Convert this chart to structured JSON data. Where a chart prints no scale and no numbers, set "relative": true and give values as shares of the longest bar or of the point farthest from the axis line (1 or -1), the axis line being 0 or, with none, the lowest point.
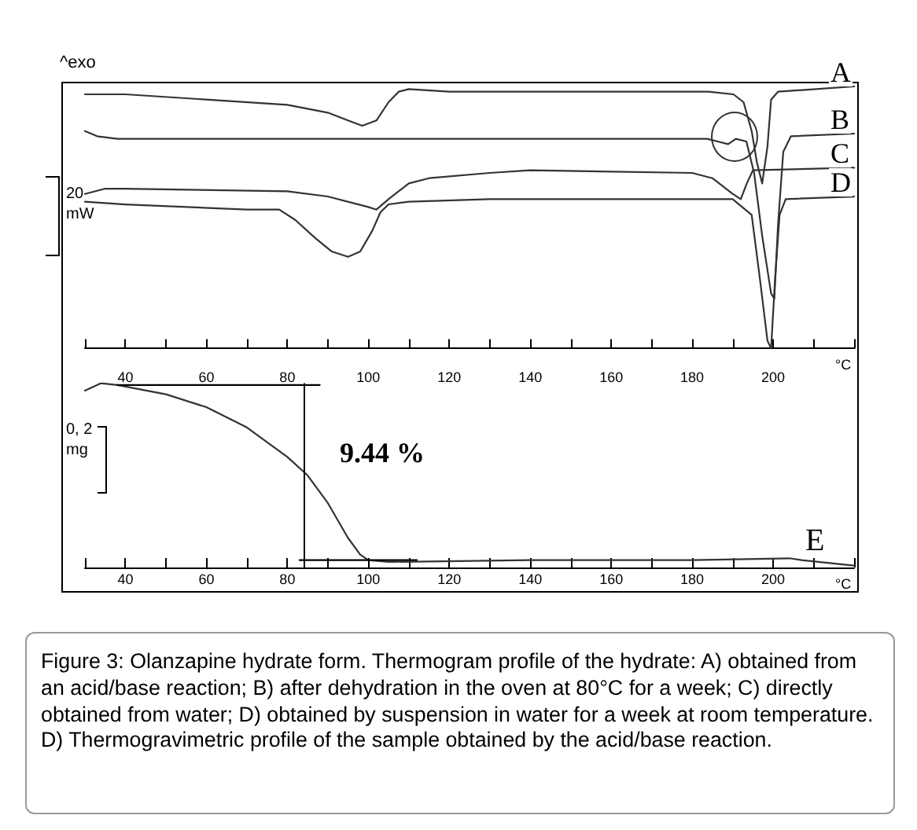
{
  "chart_data": [
    {
      "type": "line",
      "relative": true,
      "xlabel": "°C",
      "xlim": [
        30,
        220
      ],
      "xticks": [
        {
          "value": 30,
          "label": null
        },
        40,
        {
          "value": 50,
          "label": null
        },
        60,
        {
          "value": 70,
          "label": null
        },
        80,
        {
          "value": 90,
          "label": null
        },
        100,
        {
          "value": 110,
          "label": null
        },
        120,
        {
          "value": 130,
          "label": null
        },
        140,
        {
          "value": 150,
          "label": null
        },
        160,
        {
          "value": 170,
          "label": null
        },
        180,
        {
          "value": 190,
          "label": null
        },
        200,
        {
          "value": 210,
          "label": null
        },
        {
          "value": 220,
          "label": null
        }
      ],
      "legend": false,
      "grid": false,
      "marker": "none",
      "annotations": [
        "^exo",
        "20 mW"
      ],
      "series": [
        {
          "name": "A",
          "color": "#333333",
          "x": [
            30,
            40,
            80,
            90,
            95,
            98.5,
            102,
            105,
            107.5,
            110,
            120,
            184,
            190.2,
            192.7,
            194.7,
            196,
            197.3,
            198.6,
            199.5,
            201.2,
            220
          ],
          "values": [
            0.97,
            0.97,
            0.93,
            0.9,
            0.87,
            0.85,
            0.87,
            0.94,
            0.98,
            0.99,
            0.98,
            0.98,
            0.97,
            0.94,
            0.83,
            0.71,
            0.63,
            0.77,
            0.95,
            0.98,
            1.0
          ]
        },
        {
          "name": "B",
          "color": "#333333",
          "x": [
            30,
            33,
            38,
            183.7,
            186.3,
            188.9,
            190.8,
            193.4,
            195.3,
            197.3,
            199.5,
            200.3,
            201.2,
            202.5,
            204.4,
            220
          ],
          "values": [
            0.83,
            0.81,
            0.8,
            0.8,
            0.79,
            0.78,
            0.8,
            0.79,
            0.67,
            0.43,
            0.21,
            0.19,
            0.47,
            0.75,
            0.81,
            0.82
          ]
        },
        {
          "name": "C",
          "color": "#333333",
          "x": [
            30,
            35,
            40,
            80,
            90,
            100,
            102,
            105,
            110,
            115,
            130,
            140,
            180,
            185,
            190,
            192,
            193.5,
            195,
            220
          ],
          "values": [
            0.59,
            0.61,
            0.61,
            0.6,
            0.58,
            0.54,
            0.53,
            0.57,
            0.63,
            0.65,
            0.67,
            0.68,
            0.67,
            0.65,
            0.59,
            0.57,
            0.63,
            0.68,
            0.69
          ]
        },
        {
          "name": "D",
          "color": "#333333",
          "x": [
            30,
            40,
            70,
            78,
            82,
            87,
            91,
            95,
            98,
            101,
            103,
            105,
            110,
            130,
            190,
            194.7,
            196.7,
            198.6,
            199.5,
            200.5,
            201.6,
            203.1,
            220
          ],
          "values": [
            0.56,
            0.55,
            0.53,
            0.53,
            0.49,
            0.42,
            0.37,
            0.35,
            0.37,
            0.45,
            0.52,
            0.55,
            0.56,
            0.57,
            0.57,
            0.51,
            0.27,
            0.03,
            0,
            0.27,
            0.51,
            0.57,
            0.58
          ]
        }
      ]
    },
    {
      "type": "line",
      "relative": true,
      "xlabel": "°C",
      "xlim": [
        30,
        220
      ],
      "xticks": [
        {
          "value": 30,
          "label": null
        },
        40,
        {
          "value": 50,
          "label": null
        },
        60,
        {
          "value": 70,
          "label": null
        },
        80,
        {
          "value": 90,
          "label": null
        },
        100,
        {
          "value": 110,
          "label": null
        },
        120,
        {
          "value": 130,
          "label": null
        },
        140,
        {
          "value": 150,
          "label": null
        },
        160,
        {
          "value": 170,
          "label": null
        },
        180,
        {
          "value": 190,
          "label": null
        },
        200,
        {
          "value": 210,
          "label": null
        },
        {
          "value": 220,
          "label": null
        }
      ],
      "legend": false,
      "grid": false,
      "marker": "none",
      "ref_lines": [
        {
          "axis": "x",
          "value": 84,
          "color": "#000000"
        }
      ],
      "annotations": [
        "0, 2 mg",
        "9.44 %",
        "Figure 3: Olanzapine hydrate form. Thermogram profile of the hydrate: A) obtained from an acid/base reaction; B) after dehydration in the oven at 80°C for a week; C) directly obtained from water; D) obtained by suspension in water for a week at room temperature. D) Thermogravimetric profile of the sample obtained by the acid/base reaction."
      ],
      "series": [
        {
          "name": "E",
          "color": "#333333",
          "x": [
            30,
            34,
            38,
            50,
            60,
            70,
            80,
            85,
            90,
            95,
            98,
            100,
            105,
            140,
            180,
            204,
            207,
            220
          ],
          "values": [
            0.96,
            1,
            0.99,
            0.94,
            0.87,
            0.76,
            0.6,
            0.5,
            0.35,
            0.16,
            0.07,
            0.04,
            0.03,
            0.04,
            0.04,
            0.05,
            0.04,
            0.01
          ]
        },
        {
          "color": "#000000",
          "x": [
            38,
            88
          ],
          "values": [
            0.99,
            0.99
          ]
        },
        {
          "color": "#000000",
          "x": [
            83,
            112
          ],
          "values": [
            0.04,
            0.04
          ]
        }
      ]
    }
  ]
}
